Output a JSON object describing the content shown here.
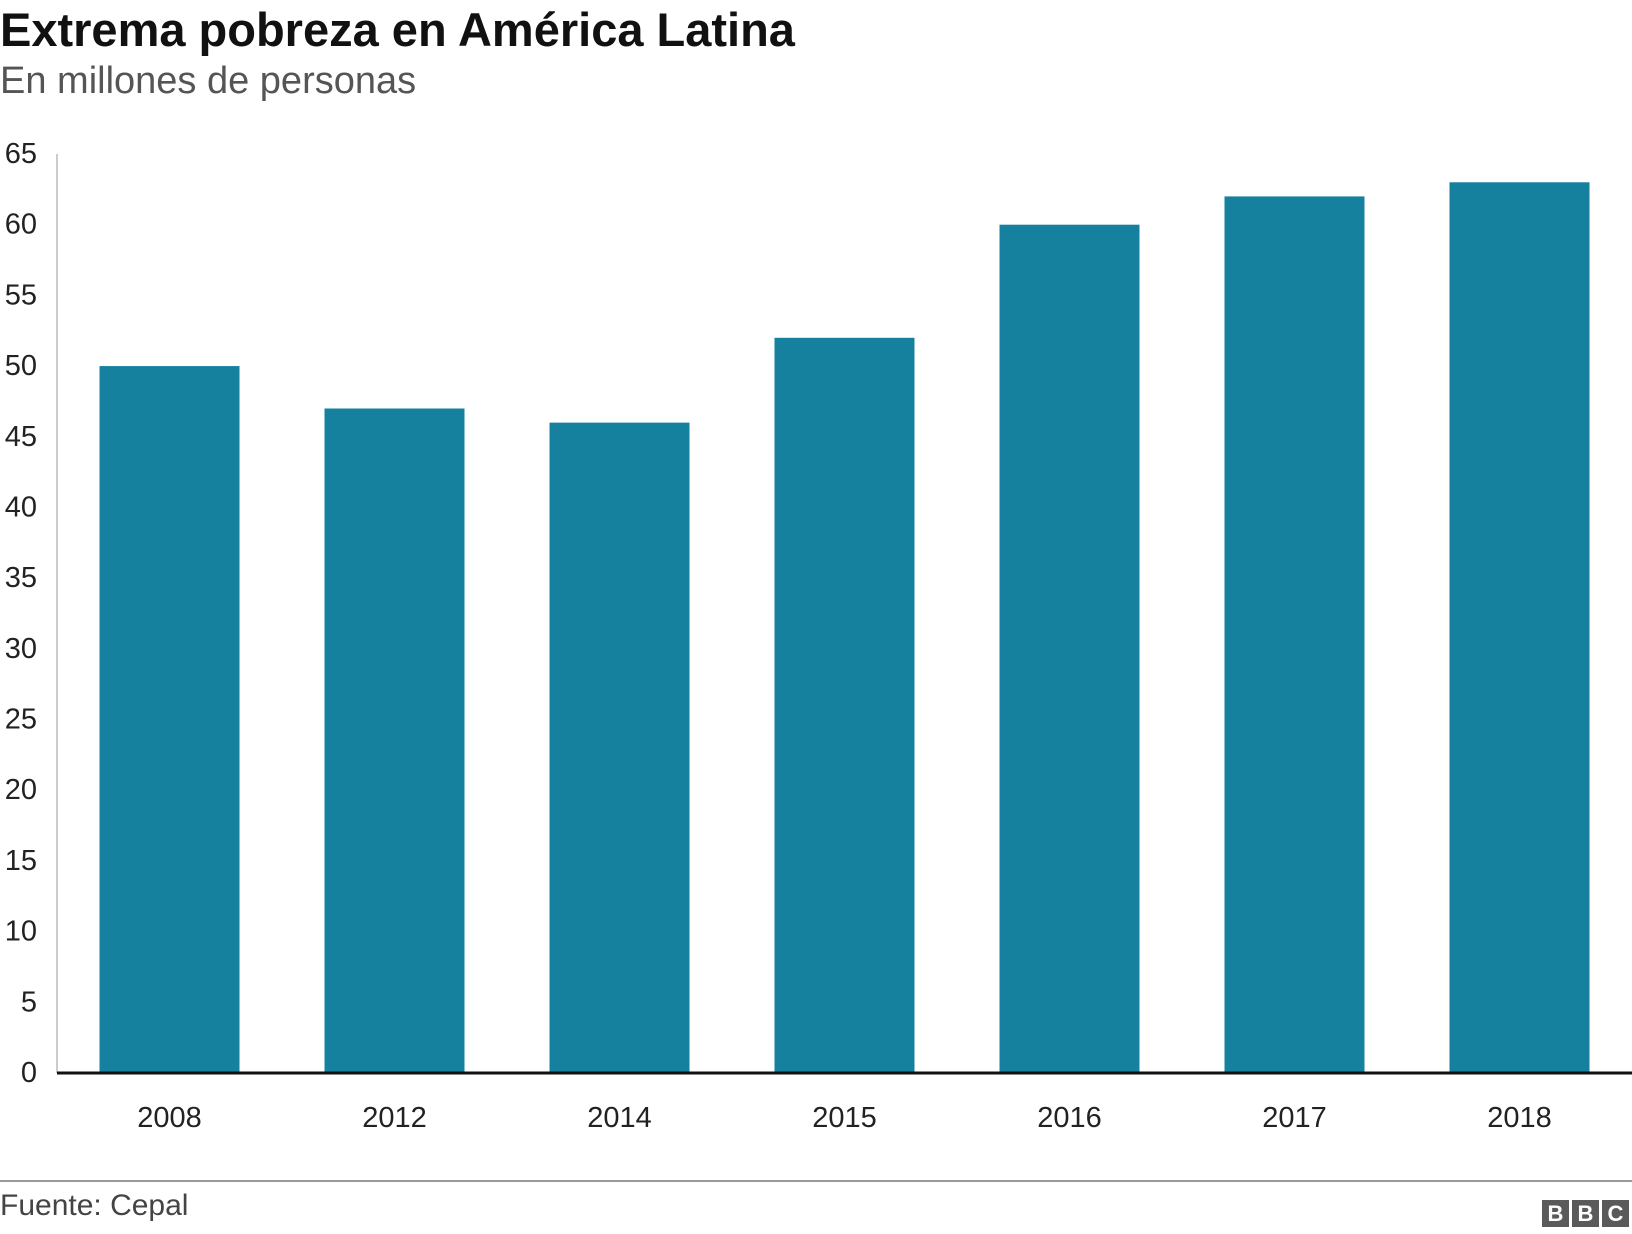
{
  "header": {
    "title": "Extrema pobreza en América Latina",
    "subtitle": "En millones de personas"
  },
  "footer": {
    "source": "Fuente: Cepal",
    "logo_letters": [
      "B",
      "B",
      "C"
    ]
  },
  "colors": {
    "bar": "#16819f",
    "axis": "#111111",
    "gridline": "#cccccc"
  },
  "chart_data": {
    "type": "bar",
    "title": "Extrema pobreza en América Latina",
    "subtitle": "En millones de personas",
    "categories": [
      "2008",
      "2012",
      "2014",
      "2015",
      "2016",
      "2017",
      "2018"
    ],
    "values": [
      50,
      47,
      46,
      52,
      60,
      62,
      63
    ],
    "ylim": [
      0,
      65
    ],
    "yticks": [
      0,
      5,
      10,
      15,
      20,
      25,
      30,
      35,
      40,
      45,
      50,
      55,
      60,
      65
    ],
    "grid": false,
    "legend": "none"
  }
}
